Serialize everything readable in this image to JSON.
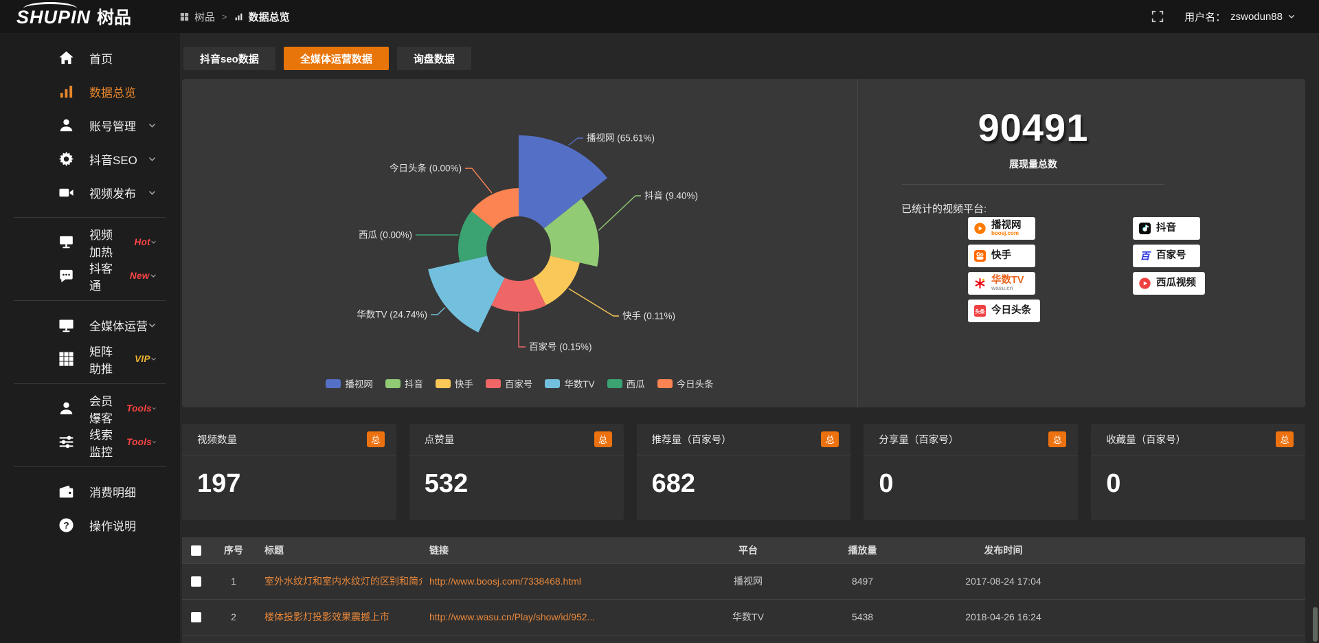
{
  "header": {
    "logo_en": "SHUPIN",
    "logo_cn": "树品",
    "breadcrumb": [
      "树品",
      "数据总览"
    ],
    "breadcrumb_separator": ">",
    "username_label": "用户名：",
    "username": "zswodun88"
  },
  "sidebar": {
    "items": [
      {
        "key": "home",
        "label": "首页",
        "icon": "home"
      },
      {
        "key": "data-overview",
        "label": "数据总览",
        "icon": "chart",
        "active": true
      },
      {
        "key": "account-management",
        "label": "账号管理",
        "icon": "user",
        "chevron": true
      },
      {
        "key": "douyin-seo",
        "label": "抖音SEO",
        "icon": "gear",
        "chevron": true
      },
      {
        "key": "video-publish",
        "label": "视频发布",
        "icon": "video",
        "chevron": true,
        "divider_after": true
      },
      {
        "key": "video-heating",
        "label": "视频加热",
        "icon": "heat",
        "badge": "Hot",
        "badge_color": "#ff4545",
        "chevron": true
      },
      {
        "key": "douketong",
        "label": "抖客通",
        "icon": "chat",
        "badge": "New",
        "badge_color": "#ff4545",
        "chevron": true,
        "divider_after": true
      },
      {
        "key": "all-media-operation",
        "label": "全媒体运营",
        "icon": "monitor",
        "chevron": true
      },
      {
        "key": "matrix-boost",
        "label": "矩阵助推",
        "icon": "grid",
        "badge": "VIP",
        "badge_color": "#f2b632",
        "chevron": true,
        "divider_after": true
      },
      {
        "key": "member-baoke",
        "label": "会员爆客",
        "icon": "user",
        "badge": "Tools",
        "badge_color": "#ff4545",
        "chevron": true
      },
      {
        "key": "clue-monitor",
        "label": "线索监控",
        "icon": "sliders",
        "badge": "Tools",
        "badge_color": "#ff4545",
        "chevron": true,
        "divider_after": true
      },
      {
        "key": "consumption-detail",
        "label": "消费明细",
        "icon": "wallet"
      },
      {
        "key": "operation-guide",
        "label": "操作说明",
        "icon": "question"
      }
    ]
  },
  "tabs": [
    {
      "key": "douyin-seo-data",
      "label": "抖音seo数据",
      "active": false
    },
    {
      "key": "all-media-data",
      "label": "全媒体运营数据",
      "active": true
    },
    {
      "key": "inquiry-data",
      "label": "询盘数据",
      "active": false
    }
  ],
  "overview": {
    "total_value": "90491",
    "total_label": "展现量总数",
    "platforms_title": "已统计的视频平台:",
    "platform_chips_left": [
      {
        "name": "播视网",
        "sub": "boosj.com",
        "icon": "boosj"
      },
      {
        "name": "快手",
        "icon": "kuaishou"
      },
      {
        "name": "华数TV",
        "sub": "wasu.cn",
        "icon": "wasu",
        "name_color": "#e8641e",
        "sub_color": "#999999"
      },
      {
        "name": "今日头条",
        "icon": "toutiao"
      }
    ],
    "platform_chips_right": [
      {
        "name": "抖音",
        "icon": "douyin"
      },
      {
        "name": "百家号",
        "icon": "baijiahao"
      },
      {
        "name": "西瓜视频",
        "icon": "xigua"
      }
    ]
  },
  "chart_data": {
    "type": "pie",
    "variant": "nightingale-rose",
    "donut_hole": true,
    "legend_position": "bottom",
    "label_format": "{name} ({percent}%)",
    "series": [
      {
        "name": "播视网",
        "percent": 65.61,
        "percent_label": "65.61",
        "color": "#5470c6"
      },
      {
        "name": "抖音",
        "percent": 9.4,
        "percent_label": "9.40",
        "color": "#91cc75"
      },
      {
        "name": "快手",
        "percent": 0.11,
        "percent_label": "0.11",
        "color": "#fac858"
      },
      {
        "name": "百家号",
        "percent": 0.15,
        "percent_label": "0.15",
        "color": "#ee6666"
      },
      {
        "name": "华数TV",
        "percent": 24.74,
        "percent_label": "24.74",
        "color": "#73c0de"
      },
      {
        "name": "西瓜",
        "percent": 0.0,
        "percent_label": "0.00",
        "color": "#3ba272"
      },
      {
        "name": "今日头条",
        "percent": 0.0,
        "percent_label": "0.00",
        "color": "#fc8452"
      }
    ],
    "legend": [
      "播视网",
      "抖音",
      "快手",
      "百家号",
      "华数TV",
      "西瓜",
      "今日头条"
    ]
  },
  "stat_cards": [
    {
      "key": "video-count",
      "label": "视频数量",
      "badge": "总",
      "value": "197"
    },
    {
      "key": "like-count",
      "label": "点赞量",
      "badge": "总",
      "value": "532"
    },
    {
      "key": "recommend-count",
      "label": "推荐量（百家号）",
      "badge": "总",
      "value": "682"
    },
    {
      "key": "share-count",
      "label": "分享量（百家号）",
      "badge": "总",
      "value": "0"
    },
    {
      "key": "favorite-count",
      "label": "收藏量（百家号）",
      "badge": "总",
      "value": "0"
    }
  ],
  "table": {
    "columns": [
      "序号",
      "标题",
      "链接",
      "平台",
      "播放量",
      "发布时间"
    ],
    "rows": [
      {
        "num": "1",
        "title": "室外水纹灯和室内水纹灯的区别和简介",
        "link": "http://www.boosj.com/7338468.html",
        "platform": "播视网",
        "plays": "8497",
        "time": "2017-08-24 17:04"
      },
      {
        "num": "2",
        "title": "楼体投影灯投影效果震撼上市",
        "link": "http://www.wasu.cn/Play/show/id/952...",
        "platform": "华数TV",
        "plays": "5438",
        "time": "2018-04-26 16:24"
      }
    ]
  },
  "colors": {
    "accent": "#ec7210",
    "active_tab": "#e8750a",
    "link_text": "#e8873a",
    "badge_red": "#ff4545",
    "badge_gold": "#f2b632",
    "panel_bg": "#383838"
  }
}
